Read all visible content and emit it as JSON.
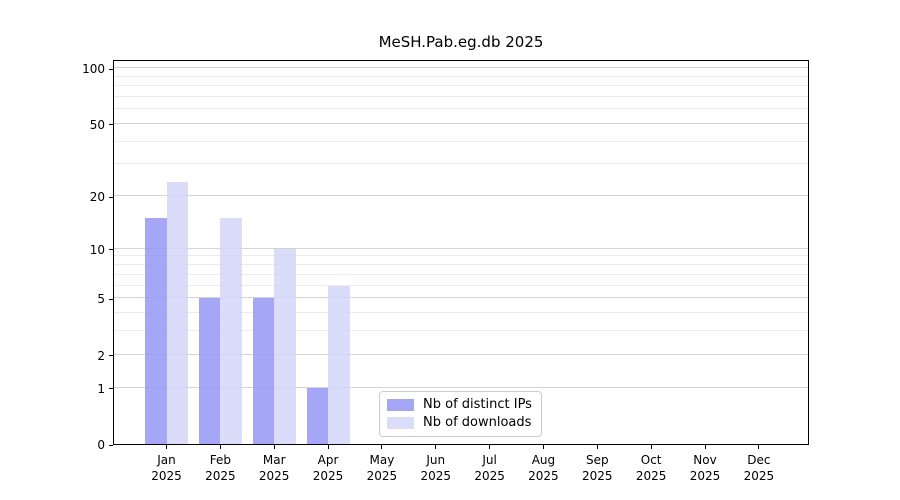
{
  "chart_data": {
    "type": "bar",
    "title": "MeSH.Pab.eg.db 2025",
    "categories": [
      "Jan",
      "Feb",
      "Mar",
      "Apr",
      "May",
      "Jun",
      "Jul",
      "Aug",
      "Sep",
      "Oct",
      "Nov",
      "Dec"
    ],
    "x_tick_second_line": "2025",
    "series": [
      {
        "name": "Nb of distinct IPs",
        "color": "#9696f5",
        "opacity": 0.85,
        "values": [
          15,
          5,
          5,
          1,
          0,
          0,
          0,
          0,
          0,
          0,
          0,
          0
        ]
      },
      {
        "name": "Nb of downloads",
        "color": "#d2d2f9",
        "opacity": 0.8,
        "values": [
          24,
          15,
          10,
          6,
          0,
          0,
          0,
          0,
          0,
          0,
          0,
          0
        ]
      }
    ],
    "y_scale": "log10(1+x)",
    "y_major_ticks": [
      0,
      1,
      2,
      5,
      10,
      20,
      50,
      100
    ],
    "y_tick_labels": [
      "0",
      "1",
      "2",
      "5",
      "10",
      "20",
      "50",
      "100"
    ],
    "y_minor_ticks": [
      3,
      4,
      6,
      7,
      8,
      9,
      30,
      40,
      60,
      70,
      80,
      90
    ],
    "ylim": [
      0,
      112
    ],
    "grid": true,
    "legend_position": "lower center"
  },
  "colors": {
    "grid_major": "#d4d4d4",
    "grid_minor": "#ececec",
    "axis": "#000000",
    "background": "#ffffff"
  }
}
